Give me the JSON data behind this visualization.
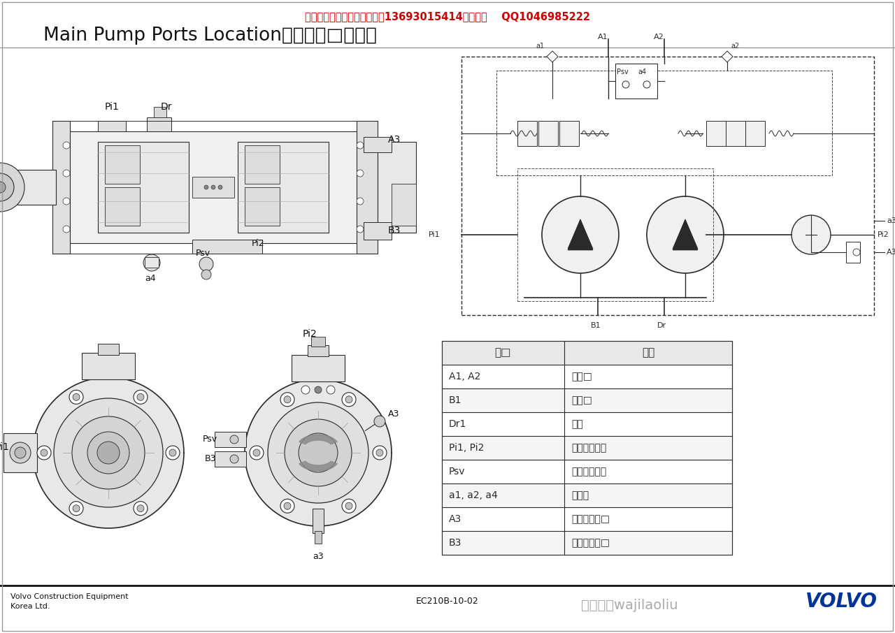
{
  "page_bg": "#ffffff",
  "top_red_text": "老刘出售挖掘机维修资料电话13693015414（微信）    QQ1046985222",
  "title_text": "Main Pump Ports Location（主泵孔□位置）",
  "footer_left1": "Volvo Construction Equipment",
  "footer_left2": "Korea Ltd.",
  "footer_center": "EC210B-10-02",
  "footer_right": "VOLVO",
  "watermark": "微信号：wajilaoliu",
  "table_headers": [
    "孔□",
    "内容"
  ],
  "table_rows": [
    [
      "A1, A2",
      "出油□"
    ],
    [
      "B1",
      "运油□"
    ],
    [
      "Dr1",
      "排流"
    ],
    [
      "Pi1, Pi2",
      "流量控制信号"
    ],
    [
      "Psv",
      "动力换档压力"
    ],
    [
      "a1, a2, a4",
      "检查孔"
    ],
    [
      "A3",
      "齿轮泵出油□"
    ],
    [
      "B3",
      "齿轮泵运油□"
    ]
  ],
  "lc": "#2a2a2a",
  "thin": 0.7,
  "med": 1.2,
  "thick": 2.0
}
